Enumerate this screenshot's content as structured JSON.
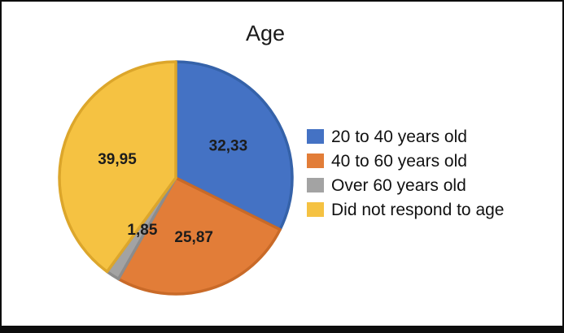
{
  "frame": {
    "background": "#ffffff",
    "border_color": "#0d0d0d"
  },
  "chart_data": {
    "type": "pie",
    "title": "Age",
    "categories": [
      "20 to 40 years old",
      "40 to 60 years old",
      "Over 60 years old",
      "Did not respond to age"
    ],
    "values": [
      32.33,
      25.87,
      1.85,
      39.95
    ],
    "value_labels": [
      "32,33",
      "25,87",
      "1,85",
      "39,95"
    ],
    "slice_colors": [
      "#4472C4",
      "#E27D38",
      "#A3A3A3",
      "#F5C242"
    ],
    "slice_border_colors": [
      "#3562A9",
      "#C96A28",
      "#8C8C8C",
      "#DCA62B"
    ],
    "start_angle_deg": 0,
    "direction": "clockwise",
    "legend_position": "right",
    "label_decimal_separator": ",",
    "total": 100.0
  }
}
